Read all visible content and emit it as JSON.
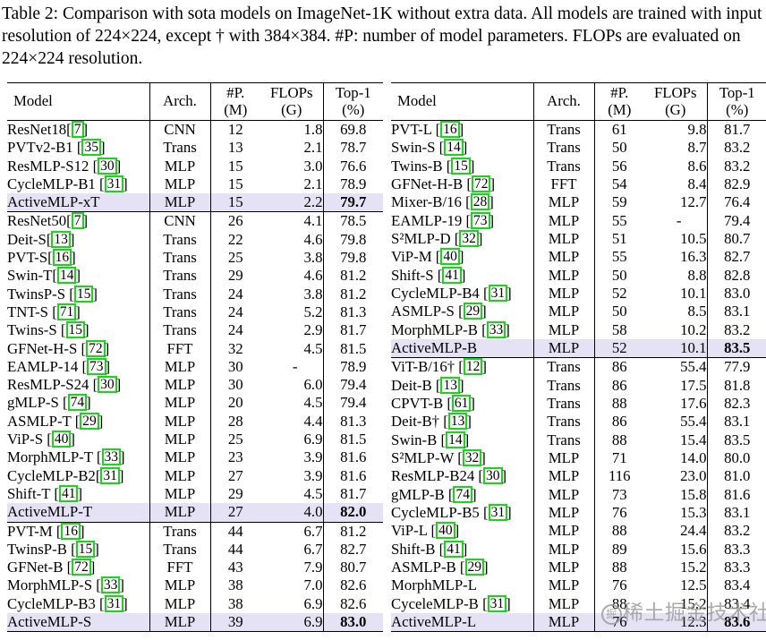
{
  "caption": {
    "text": "Table 2: Comparison with sota models on ImageNet-1K without extra data. All models are trained with input resolution of 224×224, except † with 384×384. #P: number of model parameters. FLOPs are evaluated on 224×224 resolution."
  },
  "colors": {
    "highlight_row": "#e6e2f5",
    "citation_box": "#16d916",
    "text": "#000000",
    "watermark": "#9c9c9c"
  },
  "watermark": {
    "logo": "掘",
    "text": "稀土掘金技术社区"
  },
  "tables": [
    {
      "headers": [
        {
          "l1": "Model",
          "l2": ""
        },
        {
          "l1": "Arch.",
          "l2": ""
        },
        {
          "l1": "#P.",
          "l2": "(M)"
        },
        {
          "l1": "FLOPs",
          "l2": "(G)"
        },
        {
          "l1": "Top-1",
          "l2": "(%)"
        }
      ],
      "rows": [
        {
          "model_pre": "ResNet18[",
          "cite": "7",
          "model_post": "]",
          "arch": "CNN",
          "params": "12",
          "flops": "1.8",
          "top1": "69.8",
          "highlight": false,
          "separator_after": false
        },
        {
          "model_pre": "PVTv2-B1 [",
          "cite": "35",
          "model_post": "]",
          "arch": "Trans",
          "params": "13",
          "flops": "2.1",
          "top1": "78.7",
          "highlight": false,
          "separator_after": false
        },
        {
          "model_pre": "ResMLP-S12 [",
          "cite": "30",
          "model_post": "]",
          "arch": "MLP",
          "params": "15",
          "flops": "3.0",
          "top1": "76.6",
          "highlight": false,
          "separator_after": false
        },
        {
          "model_pre": "CycleMLP-B1 [",
          "cite": "31",
          "model_post": "]",
          "arch": "MLP",
          "params": "15",
          "flops": "2.1",
          "top1": "78.9",
          "highlight": false,
          "separator_after": false
        },
        {
          "model_pre": "ActiveMLP-xT",
          "cite": null,
          "model_post": "",
          "arch": "MLP",
          "params": "15",
          "flops": "2.2",
          "top1": "79.7",
          "highlight": true,
          "separator_after": true
        },
        {
          "model_pre": "ResNet50[",
          "cite": "7",
          "model_post": "]",
          "arch": "CNN",
          "params": "26",
          "flops": "4.1",
          "top1": "78.5",
          "highlight": false,
          "separator_after": false
        },
        {
          "model_pre": "Deit-S[",
          "cite": "13",
          "model_post": "]",
          "arch": "Trans",
          "params": "22",
          "flops": "4.6",
          "top1": "79.8",
          "highlight": false,
          "separator_after": false
        },
        {
          "model_pre": "PVT-S[",
          "cite": "16",
          "model_post": "]",
          "arch": "Trans",
          "params": "25",
          "flops": "3.8",
          "top1": "79.8",
          "highlight": false,
          "separator_after": false
        },
        {
          "model_pre": "Swin-T[",
          "cite": "14",
          "model_post": "]",
          "arch": "Trans",
          "params": "29",
          "flops": "4.6",
          "top1": "81.2",
          "highlight": false,
          "separator_after": false
        },
        {
          "model_pre": "TwinsP-S [",
          "cite": "15",
          "model_post": "]",
          "arch": "Trans",
          "params": "24",
          "flops": "3.8",
          "top1": "81.2",
          "highlight": false,
          "separator_after": false
        },
        {
          "model_pre": "TNT-S [",
          "cite": "71",
          "model_post": "]",
          "arch": "Trans",
          "params": "24",
          "flops": "5.2",
          "top1": "81.3",
          "highlight": false,
          "separator_after": false
        },
        {
          "model_pre": "Twins-S [",
          "cite": "15",
          "model_post": "]",
          "arch": "Trans",
          "params": "24",
          "flops": "2.9",
          "top1": "81.7",
          "highlight": false,
          "separator_after": false
        },
        {
          "model_pre": "GFNet-H-S [",
          "cite": "72",
          "model_post": "]",
          "arch": "FFT",
          "params": "32",
          "flops": "4.5",
          "top1": "81.5",
          "highlight": false,
          "separator_after": false
        },
        {
          "model_pre": "EAMLP-14 [",
          "cite": "73",
          "model_post": "]",
          "arch": "MLP",
          "params": "30",
          "flops": "-",
          "top1": "78.9",
          "highlight": false,
          "separator_after": false
        },
        {
          "model_pre": "ResMLP-S24 [",
          "cite": "30",
          "model_post": "]",
          "arch": "MLP",
          "params": "30",
          "flops": "6.0",
          "top1": "79.4",
          "highlight": false,
          "separator_after": false
        },
        {
          "model_pre": "gMLP-S [",
          "cite": "74",
          "model_post": "]",
          "arch": "MLP",
          "params": "20",
          "flops": "4.5",
          "top1": "79.4",
          "highlight": false,
          "separator_after": false
        },
        {
          "model_pre": "ASMLP-T [",
          "cite": "29",
          "model_post": "]",
          "arch": "MLP",
          "params": "28",
          "flops": "4.4",
          "top1": "81.3",
          "highlight": false,
          "separator_after": false
        },
        {
          "model_pre": "ViP-S [",
          "cite": "40",
          "model_post": "]",
          "arch": "MLP",
          "params": "25",
          "flops": "6.9",
          "top1": "81.5",
          "highlight": false,
          "separator_after": false
        },
        {
          "model_pre": "MorphMLP-T [",
          "cite": "33",
          "model_post": "]",
          "arch": "MLP",
          "params": "23",
          "flops": "3.9",
          "top1": "81.6",
          "highlight": false,
          "separator_after": false
        },
        {
          "model_pre": "CycleMLP-B2[",
          "cite": "31",
          "model_post": "]",
          "arch": "MLP",
          "params": "27",
          "flops": "3.9",
          "top1": "81.6",
          "highlight": false,
          "separator_after": false
        },
        {
          "model_pre": "Shift-T [",
          "cite": "41",
          "model_post": "]",
          "arch": "MLP",
          "params": "29",
          "flops": "4.5",
          "top1": "81.7",
          "highlight": false,
          "separator_after": false
        },
        {
          "model_pre": "ActiveMLP-T",
          "cite": null,
          "model_post": "",
          "arch": "MLP",
          "params": "27",
          "flops": "4.0",
          "top1": "82.0",
          "highlight": true,
          "separator_after": true
        },
        {
          "model_pre": "PVT-M [",
          "cite": "16",
          "model_post": "]",
          "arch": "Trans",
          "params": "44",
          "flops": "6.7",
          "top1": "81.2",
          "highlight": false,
          "separator_after": false
        },
        {
          "model_pre": "TwinsP-B [",
          "cite": "15",
          "model_post": "]",
          "arch": "Trans",
          "params": "44",
          "flops": "6.7",
          "top1": "82.7",
          "highlight": false,
          "separator_after": false
        },
        {
          "model_pre": "GFNet-B [",
          "cite": "72",
          "model_post": "]",
          "arch": "FFT",
          "params": "43",
          "flops": "7.9",
          "top1": "80.7",
          "highlight": false,
          "separator_after": false
        },
        {
          "model_pre": "MorphMLP-S [",
          "cite": "33",
          "model_post": "]",
          "arch": "MLP",
          "params": "38",
          "flops": "7.0",
          "top1": "82.6",
          "highlight": false,
          "separator_after": false
        },
        {
          "model_pre": "CycleMLP-B3 [",
          "cite": "31",
          "model_post": "]",
          "arch": "MLP",
          "params": "38",
          "flops": "6.9",
          "top1": "82.6",
          "highlight": false,
          "separator_after": false
        },
        {
          "model_pre": "ActiveMLP-S",
          "cite": null,
          "model_post": "",
          "arch": "MLP",
          "params": "39",
          "flops": "6.9",
          "top1": "83.0",
          "highlight": true,
          "separator_after": false
        }
      ]
    },
    {
      "headers": [
        {
          "l1": "Model",
          "l2": ""
        },
        {
          "l1": "Arch.",
          "l2": ""
        },
        {
          "l1": "#P.",
          "l2": "(M)"
        },
        {
          "l1": "FLOPs",
          "l2": "(G)"
        },
        {
          "l1": "Top-1",
          "l2": "(%)"
        }
      ],
      "rows": [
        {
          "model_pre": "PVT-L [",
          "cite": "16",
          "model_post": "]",
          "arch": "Trans",
          "params": "61",
          "flops": "9.8",
          "top1": "81.7",
          "highlight": false,
          "separator_after": false
        },
        {
          "model_pre": "Swin-S [",
          "cite": "14",
          "model_post": "]",
          "arch": "Trans",
          "params": "50",
          "flops": "8.7",
          "top1": "83.2",
          "highlight": false,
          "separator_after": false
        },
        {
          "model_pre": "Twins-B [",
          "cite": "15",
          "model_post": "]",
          "arch": "Trans",
          "params": "56",
          "flops": "8.6",
          "top1": "83.2",
          "highlight": false,
          "separator_after": false
        },
        {
          "model_pre": "GFNet-H-B [",
          "cite": "72",
          "model_post": "]",
          "arch": "FFT",
          "params": "54",
          "flops": "8.4",
          "top1": "82.9",
          "highlight": false,
          "separator_after": false
        },
        {
          "model_pre": "Mixer-B/16 [",
          "cite": "28",
          "model_post": "]",
          "arch": "MLP",
          "params": "59",
          "flops": "12.7",
          "top1": "76.4",
          "highlight": false,
          "separator_after": false
        },
        {
          "model_pre": "EAMLP-19 [",
          "cite": "73",
          "model_post": "]",
          "arch": "MLP",
          "params": "55",
          "flops": "-",
          "top1": "79.4",
          "highlight": false,
          "separator_after": false
        },
        {
          "model_pre": "S²MLP-D [",
          "cite": "32",
          "model_post": "]",
          "arch": "MLP",
          "params": "51",
          "flops": "10.5",
          "top1": "80.7",
          "highlight": false,
          "separator_after": false
        },
        {
          "model_pre": "ViP-M [",
          "cite": "40",
          "model_post": "]",
          "arch": "MLP",
          "params": "55",
          "flops": "16.3",
          "top1": "82.7",
          "highlight": false,
          "separator_after": false
        },
        {
          "model_pre": "Shift-S [",
          "cite": "41",
          "model_post": "]",
          "arch": "MLP",
          "params": "50",
          "flops": "8.8",
          "top1": "82.8",
          "highlight": false,
          "separator_after": false
        },
        {
          "model_pre": "CycleMLP-B4 [",
          "cite": "31",
          "model_post": "]",
          "arch": "MLP",
          "params": "52",
          "flops": "10.1",
          "top1": "83.0",
          "highlight": false,
          "separator_after": false
        },
        {
          "model_pre": "ASMLP-S [",
          "cite": "29",
          "model_post": "]",
          "arch": "MLP",
          "params": "50",
          "flops": "8.5",
          "top1": "83.1",
          "highlight": false,
          "separator_after": false
        },
        {
          "model_pre": "MorphMLP-B [",
          "cite": "33",
          "model_post": "]",
          "arch": "MLP",
          "params": "58",
          "flops": "10.2",
          "top1": "83.2",
          "highlight": false,
          "separator_after": false
        },
        {
          "model_pre": "ActiveMLP-B",
          "cite": null,
          "model_post": "",
          "arch": "MLP",
          "params": "52",
          "flops": "10.1",
          "top1": "83.5",
          "highlight": true,
          "separator_after": true
        },
        {
          "model_pre": "ViT-B/16† [",
          "cite": "12",
          "model_post": "]",
          "arch": "Trans",
          "params": "86",
          "flops": "55.4",
          "top1": "77.9",
          "highlight": false,
          "separator_after": false
        },
        {
          "model_pre": "Deit-B [",
          "cite": "13",
          "model_post": "]",
          "arch": "Trans",
          "params": "86",
          "flops": "17.5",
          "top1": "81.8",
          "highlight": false,
          "separator_after": false
        },
        {
          "model_pre": "CPVT-B [",
          "cite": "61",
          "model_post": "]",
          "arch": "Trans",
          "params": "88",
          "flops": "17.6",
          "top1": "82.3",
          "highlight": false,
          "separator_after": false
        },
        {
          "model_pre": "Deit-B† [",
          "cite": "13",
          "model_post": "]",
          "arch": "Trans",
          "params": "86",
          "flops": "55.4",
          "top1": "83.1",
          "highlight": false,
          "separator_after": false
        },
        {
          "model_pre": "Swin-B [",
          "cite": "14",
          "model_post": "]",
          "arch": "Trans",
          "params": "88",
          "flops": "15.4",
          "top1": "83.5",
          "highlight": false,
          "separator_after": false
        },
        {
          "model_pre": "S²MLP-W [",
          "cite": "32",
          "model_post": "]",
          "arch": "MLP",
          "params": "71",
          "flops": "14.0",
          "top1": "80.0",
          "highlight": false,
          "separator_after": false
        },
        {
          "model_pre": "ResMLP-B24 [",
          "cite": "30",
          "model_post": "]",
          "arch": "MLP",
          "params": "116",
          "flops": "23.0",
          "top1": "81.0",
          "highlight": false,
          "separator_after": false
        },
        {
          "model_pre": "gMLP-B [",
          "cite": "74",
          "model_post": "]",
          "arch": "MLP",
          "params": "73",
          "flops": "15.8",
          "top1": "81.6",
          "highlight": false,
          "separator_after": false
        },
        {
          "model_pre": "CycleMLP-B5 [",
          "cite": "31",
          "model_post": "]",
          "arch": "MLP",
          "params": "76",
          "flops": "15.3",
          "top1": "83.1",
          "highlight": false,
          "separator_after": false
        },
        {
          "model_pre": "ViP-L [",
          "cite": "40",
          "model_post": "]",
          "arch": "MLP",
          "params": "88",
          "flops": "24.4",
          "top1": "83.2",
          "highlight": false,
          "separator_after": false
        },
        {
          "model_pre": "Shift-B [",
          "cite": "41",
          "model_post": "]",
          "arch": "MLP",
          "params": "89",
          "flops": "15.6",
          "top1": "83.3",
          "highlight": false,
          "separator_after": false
        },
        {
          "model_pre": "ASMLP-B [",
          "cite": "29",
          "model_post": "]",
          "arch": "MLP",
          "params": "88",
          "flops": "15.2",
          "top1": "83.3",
          "highlight": false,
          "separator_after": false
        },
        {
          "model_pre": "MorphMLP-L",
          "cite": null,
          "model_post": "",
          "arch": "MLP",
          "params": "76",
          "flops": "12.5",
          "top1": "83.4",
          "highlight": false,
          "separator_after": false
        },
        {
          "model_pre": "CyceleMLP-B [",
          "cite": "31",
          "model_post": "]",
          "arch": "MLP",
          "params": "88",
          "flops": "15.2",
          "top1": "83.4",
          "highlight": false,
          "separator_after": false
        },
        {
          "model_pre": "ActiveMLP-L",
          "cite": null,
          "model_post": "",
          "arch": "MLP",
          "params": "76",
          "flops": "12.3",
          "top1": "83.6",
          "highlight": true,
          "separator_after": false
        }
      ]
    }
  ]
}
